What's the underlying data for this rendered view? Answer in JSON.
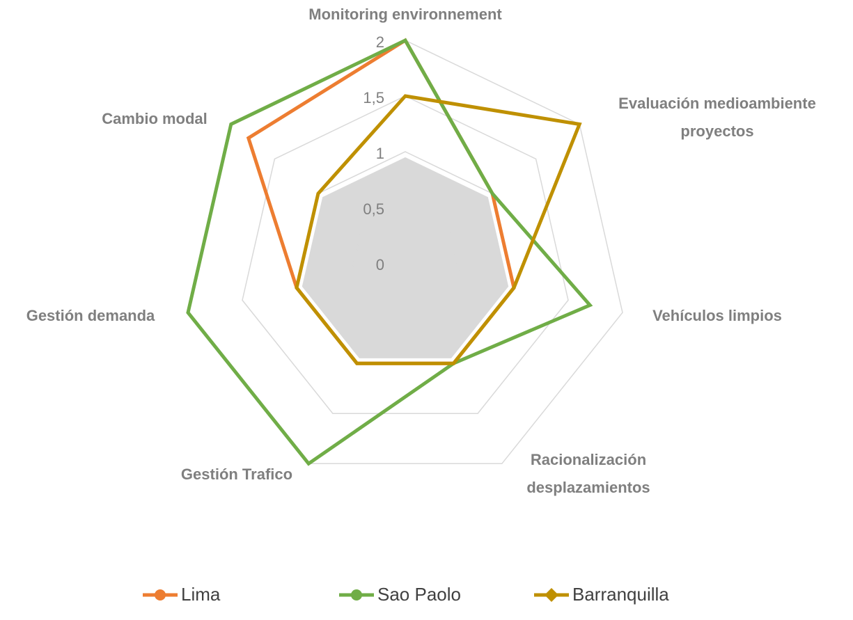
{
  "chart_data": {
    "type": "radar",
    "categories": [
      "Monitoring environnement",
      "Evaluación medioambiente\nproyectos",
      "Vehículos limpios",
      "Racionalización\ndesplazamientos",
      "Gestión Trafico",
      "Gestión demanda",
      "Cambio modal"
    ],
    "series": [
      {
        "color": "#d9d9d9",
        "fill": true,
        "values": [
          0.95,
          0.95,
          0.95,
          0.95,
          0.95,
          0.95,
          0.95
        ]
      },
      {
        "name": "Lima",
        "color": "#ed7d31",
        "marker": "circle",
        "values": [
          2,
          1,
          1,
          1,
          1,
          1,
          1.8
        ]
      },
      {
        "name": "Sao Paolo",
        "color": "#70ad47",
        "marker": "circle",
        "values": [
          2,
          1,
          1.7,
          1,
          2,
          2,
          2
        ]
      },
      {
        "name": "Barranquilla",
        "color": "#bf9000",
        "marker": "diamond",
        "values": [
          1.5,
          2,
          1,
          1,
          1,
          1,
          1
        ]
      }
    ],
    "rlim": [
      0,
      2
    ],
    "rticks": [
      0,
      {
        "value": 0.5,
        "label": "0,5"
      },
      1,
      {
        "value": 1.5,
        "label": "1,5"
      },
      2
    ],
    "grid": true,
    "legend": "bottom"
  }
}
